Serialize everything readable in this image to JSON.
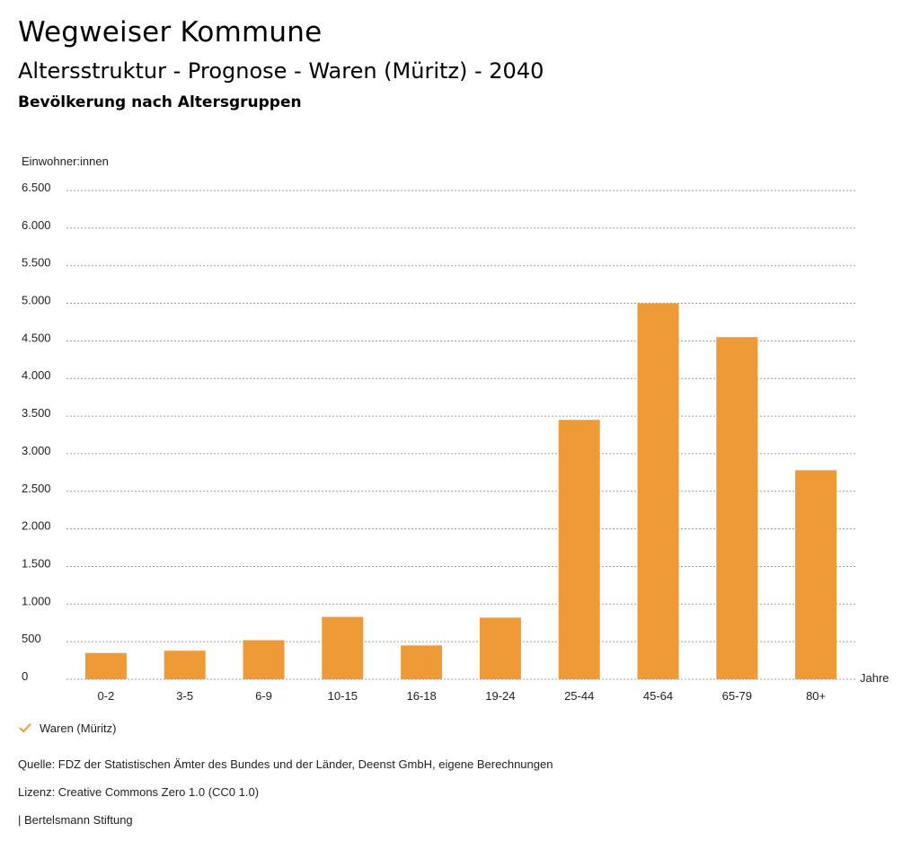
{
  "header": {
    "title": "Wegweiser Kommune",
    "subtitle": "Altersstruktur - Prognose - Waren (Müritz) - 2040",
    "chart_heading": "Bevölkerung nach Altersgruppen"
  },
  "chart_data": {
    "type": "bar",
    "title": "Bevölkerung nach Altersgruppen",
    "ylabel": "Einwohner:innen",
    "xlabel": "Jahre",
    "ylim": [
      0,
      6500
    ],
    "yticks": [
      0,
      500,
      1000,
      1500,
      2000,
      2500,
      3000,
      3500,
      4000,
      4500,
      5000,
      5500,
      6000,
      6500
    ],
    "ytick_labels": [
      "0",
      "500",
      "1.000",
      "1.500",
      "2.000",
      "2.500",
      "3.000",
      "3.500",
      "4.000",
      "4.500",
      "5.000",
      "5.500",
      "6.000",
      "6.500"
    ],
    "categories": [
      "0-2",
      "3-5",
      "6-9",
      "10-15",
      "16-18",
      "19-24",
      "25-44",
      "45-64",
      "65-79",
      "80+"
    ],
    "series": [
      {
        "name": "Waren (Müritz)",
        "color": "#ee9a37",
        "values": [
          350,
          380,
          520,
          830,
          450,
          820,
          3450,
          5000,
          4550,
          2780
        ]
      }
    ],
    "grid": true,
    "legend_position": "bottom-left"
  },
  "legend": {
    "series_label": "Waren (Müritz)",
    "check_color": "#ee9a37"
  },
  "footer": {
    "source": "Quelle: FDZ der Statistischen Ämter des Bundes und der Länder, Deenst GmbH, eigene Berechnungen",
    "license": "Lizenz: Creative Commons Zero 1.0 (CC0 1.0)",
    "organization": "| Bertelsmann Stiftung"
  }
}
